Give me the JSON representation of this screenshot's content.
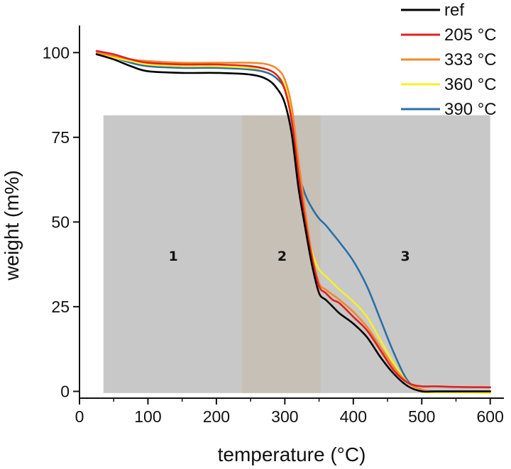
{
  "chart_data": {
    "type": "line",
    "title": "",
    "xlabel": "temperature (°C)",
    "ylabel": "weight (m%)",
    "xlim": [
      0,
      620
    ],
    "ylim": [
      -2,
      108
    ],
    "xticks": [
      0,
      100,
      200,
      300,
      400,
      500,
      600
    ],
    "yticks": [
      0,
      25,
      50,
      75,
      100
    ],
    "legend_position": "top-right",
    "regions": [
      {
        "label": "1",
        "x_start": 35,
        "x_end": 237,
        "y_top": 81.5,
        "label_x": 137,
        "label_y": 40,
        "color": "#c8c8c8"
      },
      {
        "label": "2",
        "x_start": 237,
        "x_end": 352,
        "y_top": 81.5,
        "label_x": 296,
        "label_y": 40,
        "color": "#c6c0b6"
      },
      {
        "label": "3",
        "x_start": 352,
        "x_end": 600,
        "y_top": 81.5,
        "label_x": 476,
        "label_y": 40,
        "color": "#c8c8c8"
      }
    ],
    "series": [
      {
        "name": "ref",
        "color": "#000000",
        "x": [
          25,
          50,
          75,
          100,
          150,
          200,
          250,
          275,
          290,
          300,
          310,
          320,
          330,
          340,
          350,
          360,
          370,
          380,
          400,
          420,
          440,
          460,
          480,
          500,
          520,
          550,
          600
        ],
        "y": [
          99.5,
          98,
          96,
          94.5,
          94,
          94,
          93.5,
          92,
          89,
          85,
          76,
          60,
          48,
          37,
          29,
          27,
          25,
          23,
          20,
          16,
          10,
          5,
          1.5,
          0,
          0,
          0,
          0
        ]
      },
      {
        "name": "205 °C",
        "color": "#e02020",
        "x": [
          25,
          50,
          75,
          100,
          150,
          200,
          250,
          275,
          290,
          300,
          310,
          320,
          330,
          340,
          350,
          360,
          370,
          380,
          400,
          420,
          440,
          460,
          480,
          500,
          520,
          550,
          600
        ],
        "y": [
          100.5,
          99.5,
          98,
          97,
          96.5,
          96.5,
          96,
          95,
          93,
          89,
          80,
          64,
          50,
          39,
          31,
          29,
          27,
          26,
          22,
          18,
          12,
          6,
          2.5,
          1.5,
          1.5,
          1.3,
          1.2
        ]
      },
      {
        "name": "333 °C",
        "color": "#f08a2c",
        "x": [
          25,
          50,
          75,
          100,
          150,
          200,
          250,
          275,
          290,
          300,
          310,
          320,
          330,
          340,
          350,
          360,
          370,
          380,
          400,
          420,
          440,
          460,
          480,
          500,
          520,
          550,
          600
        ],
        "y": [
          100,
          99,
          98,
          97.5,
          97,
          97,
          97,
          96.5,
          95,
          92,
          84,
          68,
          53,
          40,
          32,
          30,
          28.5,
          27,
          23.5,
          19,
          13,
          7,
          2.5,
          0.5,
          0,
          0,
          0
        ]
      },
      {
        "name": "360 °C",
        "color": "#f5f028",
        "x": [
          25,
          50,
          75,
          100,
          150,
          200,
          250,
          275,
          290,
          300,
          310,
          320,
          330,
          340,
          350,
          360,
          370,
          380,
          400,
          420,
          440,
          460,
          480,
          500,
          520,
          550,
          600
        ],
        "y": [
          99.5,
          98.5,
          97.5,
          96.5,
          96,
          96,
          95.5,
          95,
          93,
          90,
          81,
          65,
          51,
          41,
          36,
          34,
          32,
          30,
          26.5,
          22,
          15,
          8,
          2.5,
          0,
          -0.3,
          -0.3,
          -0.5
        ]
      },
      {
        "name": "390 °C",
        "color": "#2a6fa6",
        "x": [
          25,
          50,
          75,
          100,
          150,
          200,
          250,
          275,
          290,
          300,
          310,
          320,
          330,
          340,
          350,
          360,
          370,
          380,
          400,
          420,
          440,
          460,
          480,
          500,
          520,
          550,
          600
        ],
        "y": [
          99.5,
          98.5,
          97,
          96,
          95.5,
          95.5,
          95,
          94,
          92,
          89,
          80,
          65,
          58,
          54,
          51,
          49,
          46.5,
          44,
          38.5,
          31,
          21,
          11,
          3,
          0.5,
          0,
          0,
          0
        ]
      }
    ]
  }
}
